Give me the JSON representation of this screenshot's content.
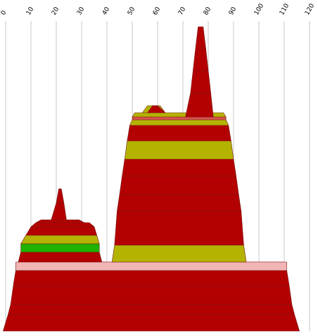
{
  "chart_data": {
    "type": "layered-shape",
    "title": "",
    "xlabel": "",
    "ylabel": "",
    "x_ticks": [
      "0",
      "10",
      "20",
      "30",
      "40",
      "50",
      "60",
      "70",
      "80",
      "90",
      "100",
      "110",
      "120"
    ],
    "xlim": [
      0,
      120
    ],
    "grid": true,
    "colors": {
      "red": "#b30000",
      "olive": "#b3b300",
      "green": "#1eb300",
      "pink": "#f2b5b5",
      "coral": "#d9534f",
      "grid": "#c8c8c8"
    },
    "layers": [
      {
        "x_bottom": [
          -1,
          116
        ],
        "x_top": [
          1,
          114
        ],
        "color": "red"
      },
      {
        "x_bottom": [
          1,
          114
        ],
        "x_top": [
          2,
          113
        ],
        "color": "red"
      },
      {
        "x_bottom": [
          2,
          113
        ],
        "x_top": [
          3,
          112
        ],
        "color": "red"
      },
      {
        "x_bottom": [
          3,
          112
        ],
        "x_top": [
          4,
          111
        ],
        "color": "red"
      },
      {
        "x_bottom": [
          4,
          111
        ],
        "x_top": [
          5,
          110
        ],
        "color": "red"
      },
      {
        "x_bottom": [
          4,
          111
        ],
        "x_top": [
          4,
          111
        ],
        "color": "pink"
      },
      {
        "x_bottom": [
          5,
          38
        ],
        "x_top": [
          6,
          37
        ],
        "color": "red"
      },
      {
        "x_bottom": [
          6,
          37
        ],
        "x_top": [
          6,
          37
        ],
        "color": "green"
      },
      {
        "x_bottom": [
          6,
          37
        ],
        "x_top": [
          8,
          36
        ],
        "color": "olive"
      },
      {
        "x_bottom": [
          8,
          36
        ],
        "x_top": [
          10,
          35
        ],
        "color": "red"
      },
      {
        "x_bottom": [
          10,
          35
        ],
        "x_top": [
          12,
          33
        ],
        "color": "red"
      },
      {
        "x_bottom": [
          12,
          31
        ],
        "x_top": [
          14,
          29
        ],
        "color": "red"
      },
      {
        "x_bottom": [
          18,
          24
        ],
        "x_top": [
          20,
          23
        ],
        "color": "red"
      },
      {
        "x_bottom": [
          20,
          23
        ],
        "x_top": [
          21,
          22
        ],
        "color": "red"
      },
      {
        "x_bottom": [
          42,
          95
        ],
        "x_top": [
          43,
          94
        ],
        "color": "olive"
      },
      {
        "x_bottom": [
          43,
          94
        ],
        "x_top": [
          44,
          93
        ],
        "color": "red"
      },
      {
        "x_bottom": [
          44,
          93
        ],
        "x_top": [
          45,
          92
        ],
        "color": "red"
      },
      {
        "x_bottom": [
          45,
          92
        ],
        "x_top": [
          46,
          91
        ],
        "color": "red"
      },
      {
        "x_bottom": [
          46,
          91
        ],
        "x_top": [
          47,
          90
        ],
        "color": "red"
      },
      {
        "x_bottom": [
          47,
          90
        ],
        "x_top": [
          48,
          89
        ],
        "color": "olive"
      },
      {
        "x_bottom": [
          48,
          89
        ],
        "x_top": [
          49,
          88
        ],
        "color": "red"
      },
      {
        "x_bottom": [
          49,
          88
        ],
        "x_top": [
          50,
          87
        ],
        "color": "olive"
      },
      {
        "x_bottom": [
          50,
          87
        ],
        "x_top": [
          50,
          87
        ],
        "color": "coral"
      },
      {
        "x_bottom": [
          50,
          87
        ],
        "x_top": [
          51,
          86
        ],
        "color": "olive"
      },
      {
        "x_bottom": [
          54,
          63
        ],
        "x_top": [
          56,
          61
        ],
        "color": "olive"
      },
      {
        "x_bottom": [
          56,
          63
        ],
        "x_top": [
          58,
          60
        ],
        "color": "red"
      },
      {
        "x_bottom": [
          71,
          82
        ],
        "x_top": [
          73,
          81
        ],
        "color": "red"
      },
      {
        "x_bottom": [
          73,
          81
        ],
        "x_top": [
          74,
          80
        ],
        "color": "red"
      },
      {
        "x_bottom": [
          74,
          80
        ],
        "x_top": [
          75,
          79
        ],
        "color": "red"
      },
      {
        "x_bottom": [
          75,
          79
        ],
        "x_top": [
          76,
          78
        ],
        "color": "red"
      },
      {
        "x_bottom": [
          76,
          78
        ],
        "x_top": [
          76,
          78
        ],
        "color": "red"
      }
    ]
  }
}
